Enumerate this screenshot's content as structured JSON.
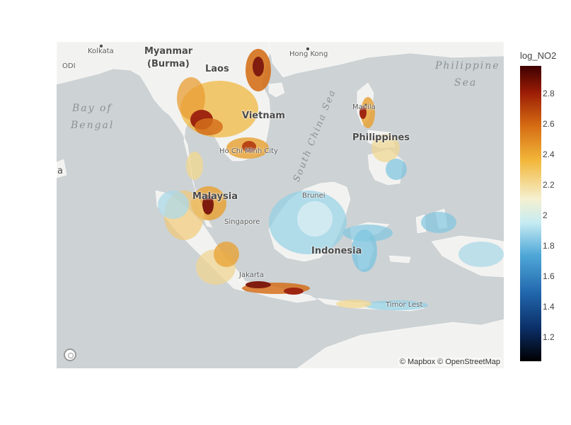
{
  "map": {
    "country_labels": [
      "Myanmar",
      "(Burma)",
      "Laos",
      "Vietnam",
      "Philippines",
      "Malaysia",
      "Indonesia"
    ],
    "city_labels": [
      "Kolkata",
      "Hong Kong",
      "Manila",
      "Ho Chi Minh City",
      "Brunei",
      "Singapore",
      "Jakarta",
      "Timor Lest"
    ],
    "sea_labels": {
      "bay": [
        "Bay of",
        "Bengal"
      ],
      "south_china": "South China Sea",
      "philippine": [
        "Philippine",
        "Sea"
      ]
    },
    "edge_fragments": [
      "ODI",
      "a"
    ],
    "attribution": "© Mapbox © OpenStreetMap",
    "colors": {
      "water": "#cdd2d4",
      "land": "#f2f2f0"
    }
  },
  "colorbar": {
    "title": "log_NO2",
    "ticks": [
      "2.8",
      "2.6",
      "2.4",
      "2.2",
      "2",
      "1.8",
      "1.6",
      "1.4",
      "1.2"
    ],
    "colorscale": [
      "#000000",
      "#0b2e66",
      "#2166ac",
      "#4fa8d8",
      "#c7ecf2",
      "#f5f0d0",
      "#f2b73a",
      "#d46a12",
      "#9b1c06",
      "#3d0000"
    ]
  }
}
